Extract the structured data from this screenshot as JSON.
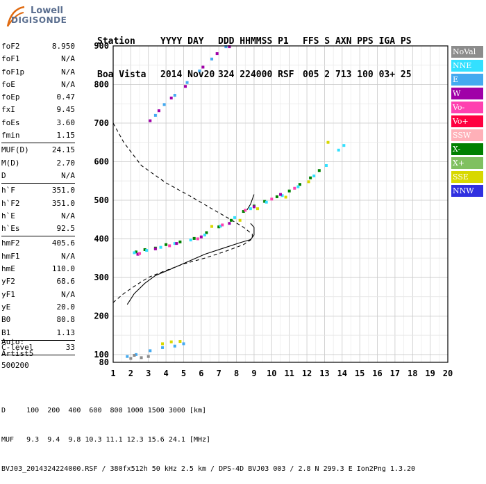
{
  "logo": {
    "word1": "Lowell",
    "word2": "DIGISONDE"
  },
  "header": {
    "line1": [
      "Station",
      "YYYY DAY",
      "DDD HHMMSS P1",
      "FFS S AXN PPS IGA PS"
    ],
    "line2": [
      "Boa Vista",
      "2014 Nov20",
      "324 224000 RSF",
      "005 2 713 100 03+ 25"
    ]
  },
  "params": [
    {
      "label": "foF2",
      "value": "8.950"
    },
    {
      "label": "foF1",
      "value": "N/A"
    },
    {
      "label": "foF1p",
      "value": "N/A"
    },
    {
      "label": "foE",
      "value": "N/A"
    },
    {
      "label": "foEp",
      "value": "0.47"
    },
    {
      "label": "fxI",
      "value": "9.45"
    },
    {
      "label": "foEs",
      "value": "3.60"
    },
    {
      "label": "fmin",
      "value": "1.15"
    },
    {
      "sep": true
    },
    {
      "label": "MUF(D)",
      "value": "24.15"
    },
    {
      "label": "M(D)",
      "value": "2.70"
    },
    {
      "label": "D",
      "value": "N/A"
    },
    {
      "sep": true
    },
    {
      "label": "h`F",
      "value": "351.0"
    },
    {
      "label": "h`F2",
      "value": "351.0"
    },
    {
      "label": "h`E",
      "value": "N/A"
    },
    {
      "label": "h`Es",
      "value": "92.5"
    },
    {
      "sep": true
    },
    {
      "label": "hmF2",
      "value": "405.6"
    },
    {
      "label": "hmF1",
      "value": "N/A"
    },
    {
      "label": "hmE",
      "value": "110.0"
    },
    {
      "label": "yF2",
      "value": "68.6"
    },
    {
      "label": "yF1",
      "value": "N/A"
    },
    {
      "label": "yE",
      "value": "20.0"
    },
    {
      "label": "B0",
      "value": "80.8"
    },
    {
      "label": "B1",
      "value": "1.13"
    },
    {
      "sep": true
    },
    {
      "label": "C-level",
      "value": "33"
    },
    {
      "sep": true
    }
  ],
  "auto": {
    "line1": "Auto:",
    "line2": "Artist5",
    "line3": "500200"
  },
  "legend": [
    {
      "label": "NoVal",
      "color": "#8c8c8c"
    },
    {
      "label": "NNE",
      "color": "#33e0ff"
    },
    {
      "label": "E",
      "color": "#44aaf0"
    },
    {
      "label": "W",
      "color": "#a000a8"
    },
    {
      "label": "Vo-",
      "color": "#ff40b0"
    },
    {
      "label": "Vo+",
      "color": "#ff0040"
    },
    {
      "label": "SSW",
      "color": "#ffb0b8"
    },
    {
      "label": "X-",
      "color": "#008000"
    },
    {
      "label": "X+",
      "color": "#80c060"
    },
    {
      "label": "SSE",
      "color": "#d8d800"
    },
    {
      "label": "NNW",
      "color": "#3030e0"
    }
  ],
  "footer": {
    "line1": "D     100  200  400  600  800 1000 1500 3000 [km]",
    "line2": "MUF   9.3  9.4  9.8 10.3 11.1 12.3 15.6 24.1 [MHz]",
    "line3": "BVJ03_2014324224000.RSF / 380fx512h 50 kHz 2.5 km / DPS-4D BVJ03 003 / 2.8 N 299.3 E Ion2Png 1.3.20"
  },
  "chart_data": {
    "type": "scatter",
    "xlim": [
      1,
      20
    ],
    "ylim": [
      80,
      900
    ],
    "x_ticks": [
      "1",
      "2",
      "3",
      "4",
      "5",
      "6",
      "7",
      "8",
      "9",
      "10",
      "11",
      "12",
      "13",
      "14",
      "15",
      "16",
      "17",
      "18",
      "19",
      "20"
    ],
    "y_ticks": [
      "80",
      "100",
      "200",
      "300",
      "400",
      "500",
      "600",
      "700",
      "800",
      "900"
    ],
    "grid": true,
    "series": [
      {
        "name": "X-",
        "color": "#008000",
        "points": [
          [
            2.3,
            366
          ],
          [
            2.8,
            372
          ],
          [
            3.4,
            376
          ],
          [
            4,
            385
          ],
          [
            4.8,
            392
          ],
          [
            5.6,
            401
          ],
          [
            6.3,
            416
          ],
          [
            7,
            431
          ],
          [
            7.7,
            448
          ],
          [
            8.4,
            471
          ],
          [
            9,
            485
          ],
          [
            9.6,
            497
          ],
          [
            10.3,
            509
          ],
          [
            11,
            524
          ],
          [
            11.6,
            541
          ],
          [
            12.2,
            558
          ],
          [
            12.7,
            577
          ]
        ]
      },
      {
        "name": "NNE",
        "color": "#33e0ff",
        "points": [
          [
            2.2,
            364
          ],
          [
            2.9,
            370
          ],
          [
            3.7,
            378
          ],
          [
            4.5,
            388
          ],
          [
            5.4,
            397
          ],
          [
            6.2,
            410
          ],
          [
            7.1,
            433
          ],
          [
            7.9,
            455
          ],
          [
            8.8,
            478
          ],
          [
            9.7,
            495
          ],
          [
            10.6,
            512
          ],
          [
            11.5,
            535
          ],
          [
            12.4,
            563
          ],
          [
            13.1,
            590
          ],
          [
            13.8,
            630
          ],
          [
            14.1,
            642
          ]
        ]
      },
      {
        "name": "E",
        "color": "#44aaf0",
        "points": [
          [
            3.4,
            720
          ],
          [
            3.9,
            748
          ],
          [
            4.5,
            772
          ],
          [
            5.2,
            805
          ],
          [
            5.9,
            835
          ],
          [
            6.6,
            866
          ],
          [
            7.4,
            898
          ],
          [
            1.8,
            95
          ],
          [
            2.3,
            100
          ],
          [
            3.1,
            110
          ],
          [
            3.8,
            118
          ],
          [
            4.5,
            122
          ],
          [
            5,
            128
          ]
        ]
      },
      {
        "name": "W",
        "color": "#a000a8",
        "points": [
          [
            3.1,
            706
          ],
          [
            3.6,
            732
          ],
          [
            4.3,
            765
          ],
          [
            5.1,
            795
          ],
          [
            6.1,
            845
          ],
          [
            6.9,
            880
          ],
          [
            7.6,
            898
          ],
          [
            2.4,
            360
          ],
          [
            3.4,
            374
          ],
          [
            4.6,
            388
          ],
          [
            6,
            405
          ],
          [
            7.6,
            440
          ],
          [
            9,
            483
          ],
          [
            10.5,
            515
          ]
        ]
      },
      {
        "name": "Vo-",
        "color": "#ff40b0",
        "points": [
          [
            2.5,
            362
          ],
          [
            4.2,
            382
          ],
          [
            5.8,
            400
          ],
          [
            7.2,
            436
          ],
          [
            8.5,
            474
          ],
          [
            10,
            503
          ],
          [
            11.3,
            531
          ]
        ]
      },
      {
        "name": "SSE",
        "color": "#d8d800",
        "points": [
          [
            3.8,
            128
          ],
          [
            4.3,
            133
          ],
          [
            4.8,
            134
          ],
          [
            6.6,
            432
          ],
          [
            8.2,
            448
          ],
          [
            9.2,
            478
          ],
          [
            10.8,
            508
          ],
          [
            12.1,
            548
          ],
          [
            13.2,
            650
          ]
        ]
      },
      {
        "name": "NoVal",
        "color": "#8c8c8c",
        "points": [
          [
            2,
            90
          ],
          [
            2.2,
            98
          ],
          [
            2.6,
            92
          ],
          [
            3,
            95
          ]
        ]
      }
    ],
    "curves": [
      {
        "style": "dashed",
        "points": [
          [
            1,
            700
          ],
          [
            1.6,
            650
          ],
          [
            2.6,
            590
          ],
          [
            4,
            545
          ],
          [
            5.4,
            510
          ],
          [
            6.6,
            478
          ],
          [
            7.6,
            452
          ],
          [
            8.4,
            430
          ],
          [
            8.9,
            412
          ],
          [
            8.9,
            400
          ],
          [
            8.4,
            385
          ],
          [
            7.4,
            368
          ],
          [
            6.2,
            350
          ],
          [
            5,
            335
          ],
          [
            4,
            318
          ],
          [
            3,
            300
          ],
          [
            2.3,
            280
          ],
          [
            1.6,
            258
          ],
          [
            1,
            235
          ]
        ]
      },
      {
        "style": "solid",
        "points": [
          [
            1.8,
            230
          ],
          [
            2.2,
            258
          ],
          [
            2.8,
            285
          ],
          [
            3.4,
            305
          ],
          [
            4.2,
            320
          ],
          [
            5.2,
            340
          ],
          [
            6.2,
            360
          ],
          [
            7.2,
            375
          ],
          [
            8.2,
            390
          ],
          [
            8.8,
            398
          ],
          [
            9,
            410
          ],
          [
            9,
            430
          ],
          [
            8.8,
            440
          ]
        ]
      },
      {
        "style": "solid",
        "points": [
          [
            8.6,
            475
          ],
          [
            8.8,
            490
          ],
          [
            9,
            515
          ]
        ]
      }
    ]
  }
}
